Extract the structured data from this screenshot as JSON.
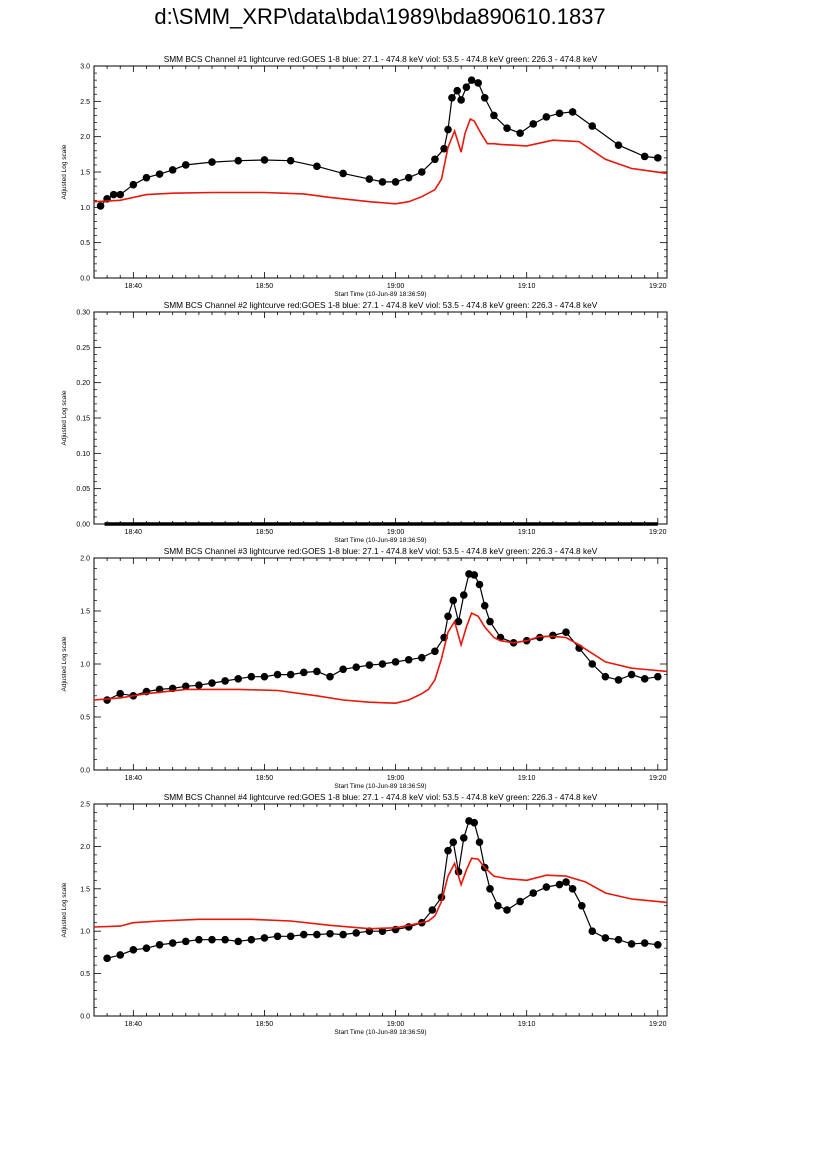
{
  "page_title": "d:\\SMM_XRP\\data\\bda\\1989\\bda890610.1837",
  "colors": {
    "black_series": "#000000",
    "red_series": "#e8170c",
    "axis": "#000000"
  },
  "chart_data": [
    {
      "type": "line",
      "title": "SMM BCS Channel #1 lightcurve  red:GOES 1-8  blue: 27.1 - 474.8 keV  viol: 53.5 - 474.8 keV  green: 226.3 - 474.8 keV",
      "xlabel": "Start Time (10-Jun-89 18:36:59)",
      "ylabel": "Adjusted Log scale",
      "xlim": [
        -3.0,
        40.7
      ],
      "ylim": [
        0.0,
        3.0
      ],
      "x_ticks": [
        {
          "value": 0,
          "label": "18:40"
        },
        {
          "value": 10,
          "label": "18:50"
        },
        {
          "value": 20,
          "label": "19:00"
        },
        {
          "value": 30,
          "label": "19:10"
        },
        {
          "value": 40,
          "label": "19:20"
        }
      ],
      "y_ticks": [
        0.0,
        0.5,
        1.0,
        1.5,
        2.0,
        2.5,
        3.0
      ],
      "tick_decimals": 1,
      "series": [
        {
          "style": "dots",
          "color": "#000000",
          "x": [
            -2.5,
            -2.0,
            -1.5,
            -1.0,
            0.0,
            1.0,
            2.0,
            3.0,
            4.0,
            6.0,
            8.0,
            10.0,
            12.0,
            14.0,
            16.0,
            18.0,
            19.0,
            20.0,
            21.0,
            22.0,
            23.0,
            23.7,
            24.0,
            24.3,
            24.7,
            25.0,
            25.4,
            25.8,
            26.3,
            26.8,
            27.5,
            28.5,
            29.5,
            30.5,
            31.5,
            32.5,
            33.5,
            35.0,
            37.0,
            39.0,
            40.0
          ],
          "values": [
            1.02,
            1.12,
            1.18,
            1.18,
            1.32,
            1.42,
            1.47,
            1.53,
            1.6,
            1.64,
            1.66,
            1.67,
            1.66,
            1.58,
            1.48,
            1.4,
            1.36,
            1.36,
            1.42,
            1.5,
            1.68,
            1.83,
            2.1,
            2.55,
            2.65,
            2.52,
            2.7,
            2.8,
            2.76,
            2.55,
            2.3,
            2.12,
            2.05,
            2.18,
            2.28,
            2.33,
            2.35,
            2.15,
            1.88,
            1.72,
            1.7
          ]
        },
        {
          "style": "line",
          "color": "#e8170c",
          "x": [
            -3.0,
            -1.0,
            1.0,
            3.0,
            6.0,
            10.0,
            13.0,
            15.0,
            18.0,
            20.0,
            21.0,
            22.0,
            23.0,
            23.5,
            24.0,
            24.5,
            25.0,
            25.3,
            25.7,
            26.0,
            26.5,
            27.0,
            27.5,
            28.0,
            30.0,
            32.0,
            34.0,
            36.0,
            38.0,
            40.7
          ],
          "values": [
            1.08,
            1.1,
            1.18,
            1.2,
            1.21,
            1.21,
            1.19,
            1.14,
            1.08,
            1.05,
            1.08,
            1.15,
            1.25,
            1.4,
            1.85,
            2.08,
            1.78,
            2.05,
            2.25,
            2.22,
            2.05,
            1.9,
            1.9,
            1.89,
            1.87,
            1.95,
            1.93,
            1.68,
            1.55,
            1.48
          ]
        }
      ]
    },
    {
      "type": "line",
      "title": "SMM BCS Channel #2 lightcurve  red:GOES 1-8  blue: 27.1 - 474.8 keV  viol: 53.5 - 474.8 keV  green: 226.3 - 474.8 keV",
      "xlabel": "Start Time (10-Jun-89 18:36:59)",
      "ylabel": "Adjusted Log scale",
      "xlim": [
        -3.0,
        40.7
      ],
      "ylim": [
        0.0,
        0.3
      ],
      "x_ticks": [
        {
          "value": 0,
          "label": "18:40"
        },
        {
          "value": 10,
          "label": "18:50"
        },
        {
          "value": 20,
          "label": "19:00"
        },
        {
          "value": 30,
          "label": "19:10"
        },
        {
          "value": 40,
          "label": "19:20"
        }
      ],
      "y_ticks": [
        0.0,
        0.05,
        0.1,
        0.15,
        0.2,
        0.25,
        0.3
      ],
      "tick_decimals": 2,
      "series": [
        {
          "style": "flat",
          "color": "#000000",
          "x": [
            -2.2,
            40.0
          ],
          "values": [
            0.0,
            0.0
          ]
        }
      ]
    },
    {
      "type": "line",
      "title": "SMM BCS Channel #3 lightcurve  red:GOES 1-8  blue: 27.1 - 474.8 keV  viol: 53.5 - 474.8 keV  green: 226.3 - 474.8 keV",
      "xlabel": "Start Time (10-Jun-89 18:36:59)",
      "ylabel": "Adjusted Log scale",
      "xlim": [
        -3.0,
        40.7
      ],
      "ylim": [
        0.0,
        2.0
      ],
      "x_ticks": [
        {
          "value": 0,
          "label": "18:40"
        },
        {
          "value": 10,
          "label": "18:50"
        },
        {
          "value": 20,
          "label": "19:00"
        },
        {
          "value": 30,
          "label": "19:10"
        },
        {
          "value": 40,
          "label": "19:20"
        }
      ],
      "y_ticks": [
        0.0,
        0.5,
        1.0,
        1.5,
        2.0
      ],
      "tick_decimals": 1,
      "series": [
        {
          "style": "dots",
          "color": "#000000",
          "x": [
            -2.0,
            -1.0,
            0.0,
            1.0,
            2.0,
            3.0,
            4.0,
            5.0,
            6.0,
            7.0,
            8.0,
            9.0,
            10.0,
            11.0,
            12.0,
            13.0,
            14.0,
            15.0,
            16.0,
            17.0,
            18.0,
            19.0,
            20.0,
            21.0,
            22.0,
            23.0,
            23.7,
            24.0,
            24.4,
            24.8,
            25.2,
            25.6,
            26.0,
            26.4,
            26.8,
            27.2,
            28.0,
            29.0,
            30.0,
            31.0,
            32.0,
            33.0,
            34.0,
            35.0,
            36.0,
            37.0,
            38.0,
            39.0,
            40.0
          ],
          "values": [
            0.66,
            0.72,
            0.7,
            0.74,
            0.76,
            0.77,
            0.79,
            0.8,
            0.82,
            0.84,
            0.86,
            0.88,
            0.88,
            0.9,
            0.9,
            0.92,
            0.93,
            0.88,
            0.95,
            0.97,
            0.99,
            1.0,
            1.02,
            1.04,
            1.06,
            1.12,
            1.25,
            1.45,
            1.6,
            1.4,
            1.65,
            1.85,
            1.84,
            1.75,
            1.55,
            1.4,
            1.25,
            1.2,
            1.22,
            1.25,
            1.27,
            1.3,
            1.15,
            1.0,
            0.88,
            0.85,
            0.9,
            0.86,
            0.88
          ]
        },
        {
          "style": "line",
          "color": "#e8170c",
          "x": [
            -3.0,
            -1.0,
            1.0,
            4.0,
            8.0,
            11.0,
            14.0,
            16.0,
            18.0,
            20.0,
            21.0,
            22.0,
            22.5,
            23.0,
            23.5,
            24.0,
            24.5,
            25.0,
            25.4,
            25.8,
            26.3,
            26.8,
            27.5,
            28.0,
            29.0,
            30.0,
            31.0,
            32.0,
            33.0,
            34.0,
            35.0,
            36.0,
            38.0,
            40.7
          ],
          "values": [
            0.66,
            0.68,
            0.72,
            0.76,
            0.76,
            0.75,
            0.7,
            0.66,
            0.64,
            0.63,
            0.66,
            0.72,
            0.76,
            0.85,
            1.05,
            1.3,
            1.4,
            1.18,
            1.35,
            1.48,
            1.45,
            1.35,
            1.25,
            1.22,
            1.2,
            1.22,
            1.26,
            1.26,
            1.25,
            1.18,
            1.1,
            1.02,
            0.96,
            0.93
          ]
        }
      ]
    },
    {
      "type": "line",
      "title": "SMM BCS Channel #4 lightcurve  red:GOES 1-8  blue: 27.1 - 474.8 keV  viol: 53.5 - 474.8 keV  green: 226.3 - 474.8 keV",
      "xlabel": "Start Time (10-Jun-89 18:36:59)",
      "ylabel": "Adjusted Log scale",
      "xlim": [
        -3.0,
        40.7
      ],
      "ylim": [
        0.0,
        2.5
      ],
      "x_ticks": [
        {
          "value": 0,
          "label": "18:40"
        },
        {
          "value": 10,
          "label": "18:50"
        },
        {
          "value": 20,
          "label": "19:00"
        },
        {
          "value": 30,
          "label": "19:10"
        },
        {
          "value": 40,
          "label": "19:20"
        }
      ],
      "y_ticks": [
        0.0,
        0.5,
        1.0,
        1.5,
        2.0,
        2.5
      ],
      "tick_decimals": 1,
      "series": [
        {
          "style": "dots",
          "color": "#000000",
          "x": [
            -2.0,
            -1.0,
            0.0,
            1.0,
            2.0,
            3.0,
            4.0,
            5.0,
            6.0,
            7.0,
            8.0,
            9.0,
            10.0,
            11.0,
            12.0,
            13.0,
            14.0,
            15.0,
            16.0,
            17.0,
            18.0,
            19.0,
            20.0,
            21.0,
            22.0,
            22.8,
            23.5,
            24.0,
            24.4,
            24.8,
            25.2,
            25.6,
            26.0,
            26.4,
            26.8,
            27.2,
            27.8,
            28.5,
            29.5,
            30.5,
            31.5,
            32.5,
            33.0,
            33.5,
            34.2,
            35.0,
            36.0,
            37.0,
            38.0,
            39.0,
            40.0
          ],
          "values": [
            0.68,
            0.72,
            0.78,
            0.8,
            0.84,
            0.86,
            0.88,
            0.9,
            0.9,
            0.9,
            0.88,
            0.9,
            0.92,
            0.94,
            0.94,
            0.96,
            0.96,
            0.97,
            0.96,
            0.98,
            1.0,
            1.0,
            1.02,
            1.05,
            1.1,
            1.25,
            1.4,
            1.95,
            2.05,
            1.7,
            2.1,
            2.3,
            2.28,
            2.05,
            1.75,
            1.5,
            1.3,
            1.25,
            1.35,
            1.45,
            1.52,
            1.55,
            1.58,
            1.5,
            1.3,
            1.0,
            0.92,
            0.9,
            0.85,
            0.86,
            0.84
          ]
        },
        {
          "style": "line",
          "color": "#e8170c",
          "x": [
            -3.0,
            -1.0,
            0.0,
            2.0,
            5.0,
            9.0,
            12.0,
            15.0,
            18.0,
            20.0,
            21.0,
            22.0,
            22.5,
            23.0,
            23.5,
            24.0,
            24.5,
            25.0,
            25.4,
            25.8,
            26.3,
            26.8,
            27.5,
            28.5,
            30.0,
            31.5,
            33.0,
            34.5,
            36.0,
            38.0,
            40.7
          ],
          "values": [
            1.05,
            1.06,
            1.1,
            1.12,
            1.14,
            1.14,
            1.12,
            1.07,
            1.03,
            1.04,
            1.07,
            1.1,
            1.12,
            1.18,
            1.35,
            1.65,
            1.8,
            1.55,
            1.72,
            1.86,
            1.85,
            1.75,
            1.65,
            1.62,
            1.6,
            1.66,
            1.65,
            1.58,
            1.45,
            1.38,
            1.34
          ]
        }
      ]
    }
  ]
}
